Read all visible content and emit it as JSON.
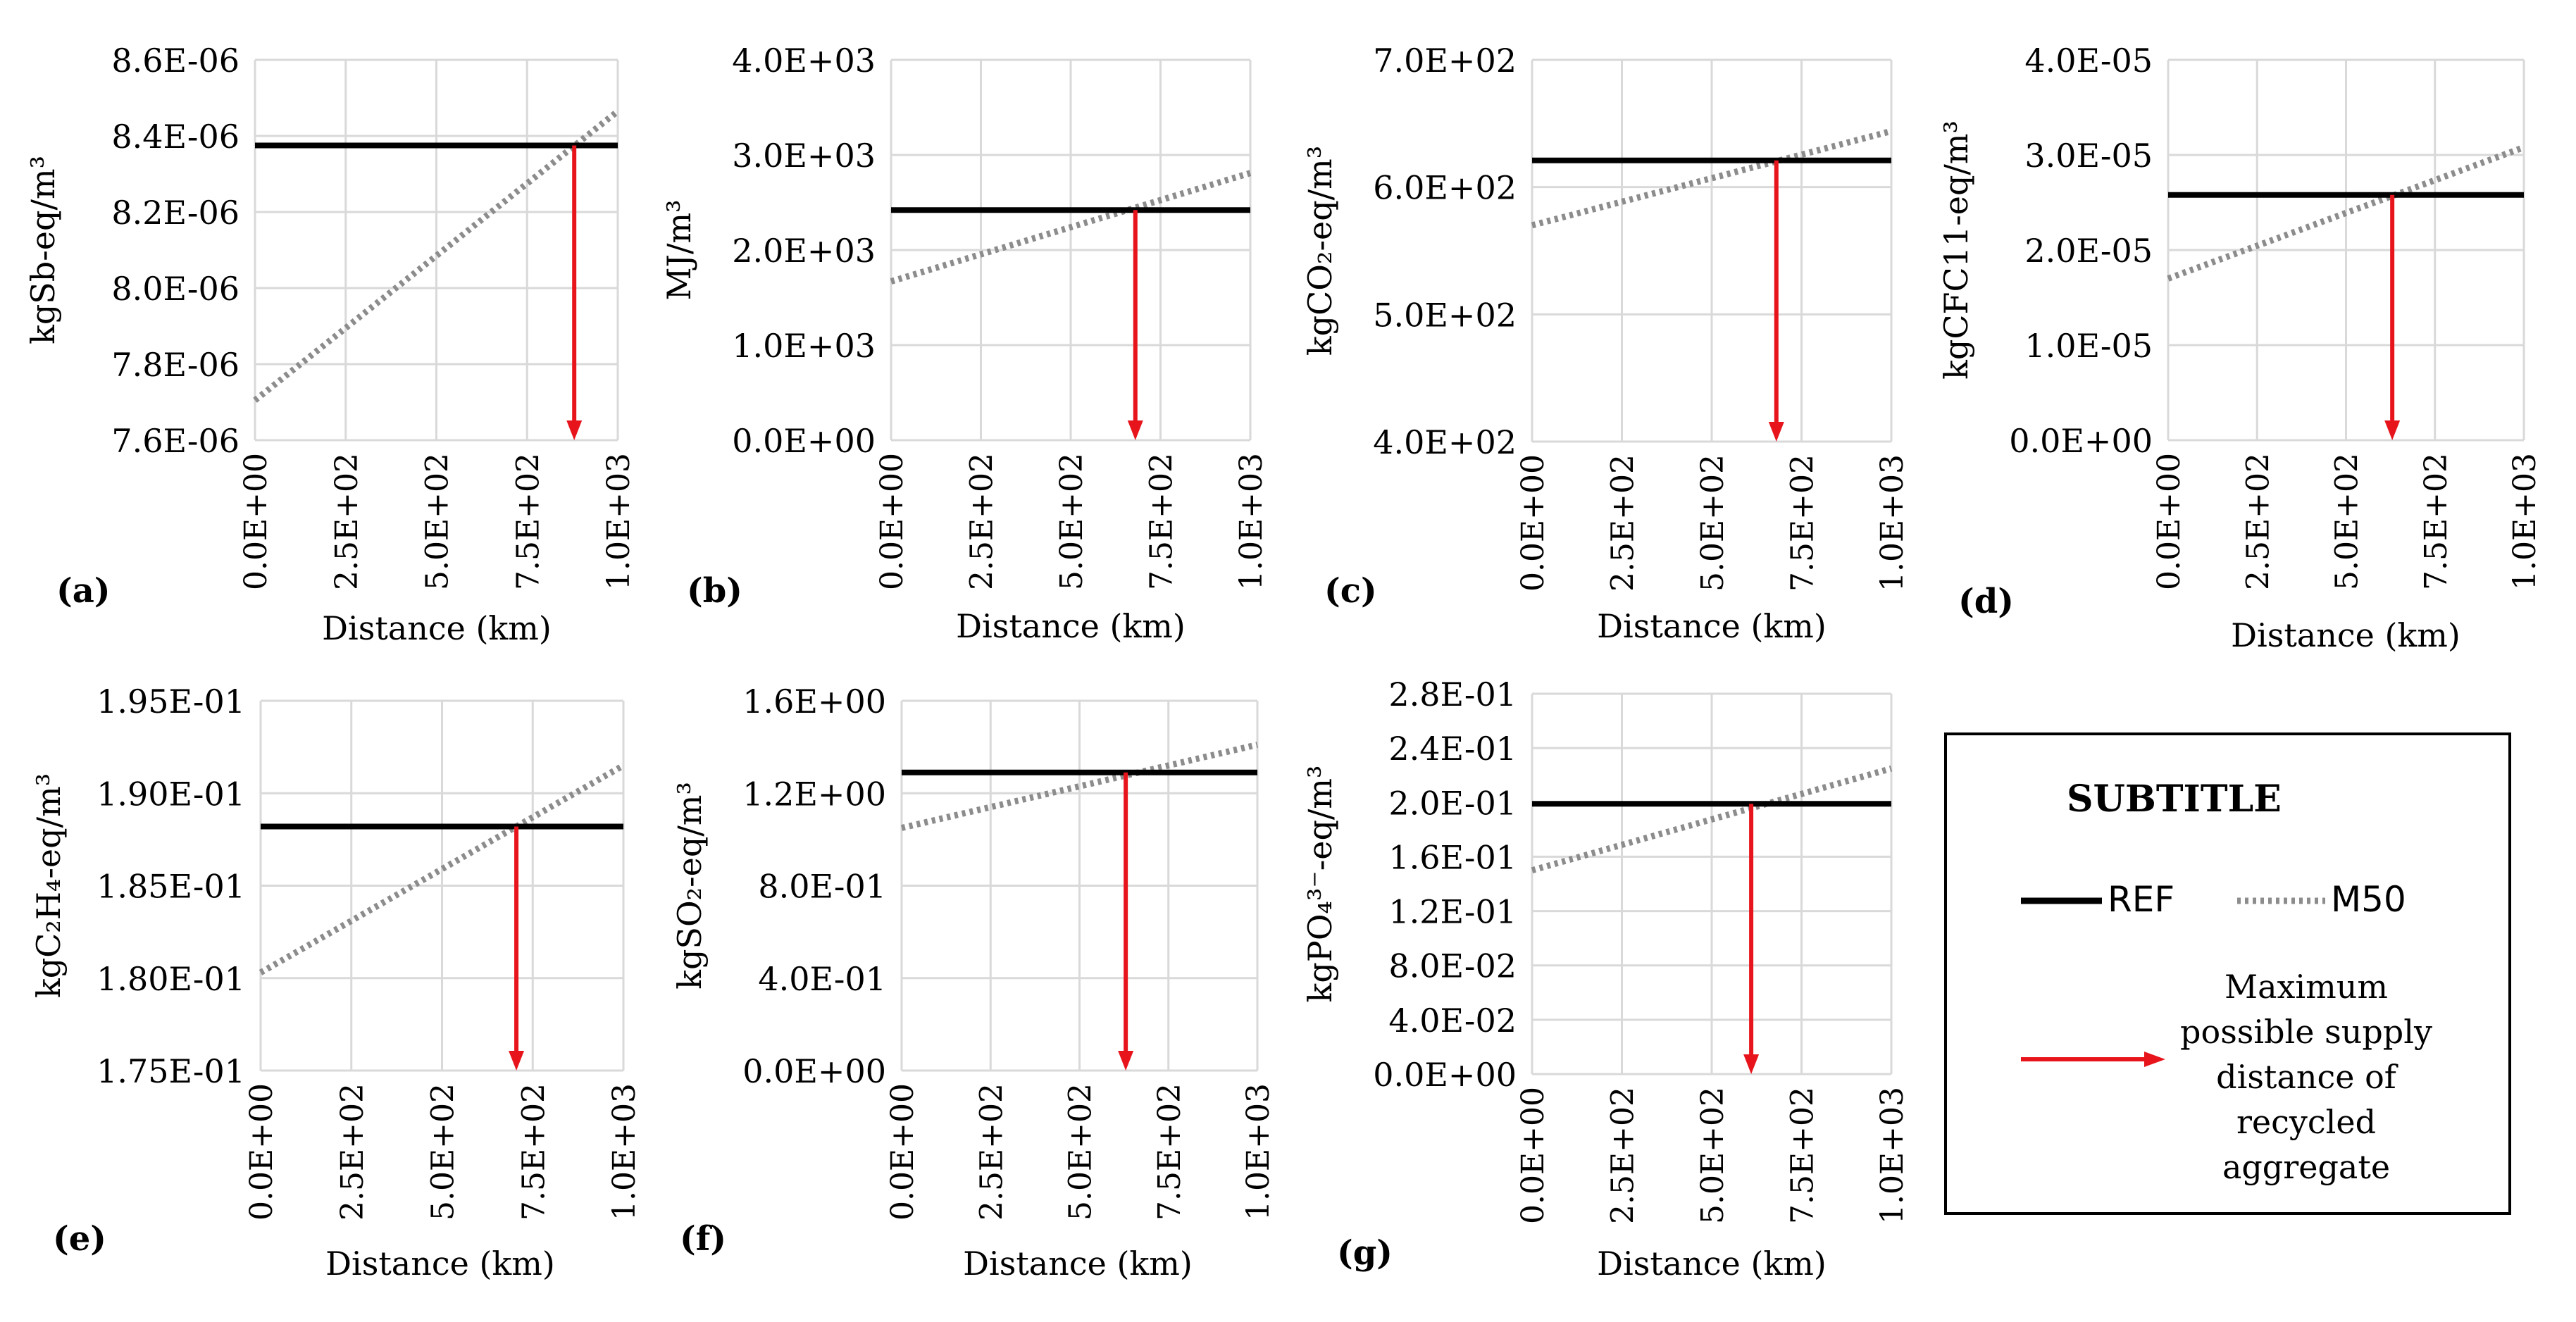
{
  "chart_data": [
    {
      "type": "line",
      "label": "(a)",
      "ylabel": "kgSb-eq/m³",
      "xlabel": "Distance (km)",
      "xlim": [
        0,
        1000
      ],
      "ylim": [
        7.6e-06,
        8.6e-06
      ],
      "yticks": [
        "7.6E-06",
        "7.8E-06",
        "8.0E-06",
        "8.2E-06",
        "8.4E-06",
        "8.6E-06"
      ],
      "xticks": [
        "0.0E+00",
        "2.5E+02",
        "5.0E+02",
        "7.5E+02",
        "1.0E+03"
      ],
      "series": [
        {
          "name": "REF",
          "x": [
            0,
            1000
          ],
          "values": [
            8.375e-06,
            8.375e-06
          ]
        },
        {
          "name": "M50",
          "x": [
            0,
            1000
          ],
          "values": [
            7.705e-06,
            8.465e-06
          ]
        }
      ],
      "max_distance": 880
    },
    {
      "type": "line",
      "label": "(b)",
      "ylabel": "MJ/m³",
      "xlabel": "Distance (km)",
      "xlim": [
        0,
        1000
      ],
      "ylim": [
        0,
        4000
      ],
      "yticks": [
        "0.0E+00",
        "1.0E+03",
        "2.0E+03",
        "3.0E+03",
        "4.0E+03"
      ],
      "xticks": [
        "0.0E+00",
        "2.5E+02",
        "5.0E+02",
        "7.5E+02",
        "1.0E+03"
      ],
      "series": [
        {
          "name": "REF",
          "x": [
            0,
            1000
          ],
          "values": [
            2420,
            2420
          ]
        },
        {
          "name": "M50",
          "x": [
            0,
            1000
          ],
          "values": [
            1670,
            2810
          ]
        }
      ],
      "max_distance": 680
    },
    {
      "type": "line",
      "label": "(c)",
      "ylabel": "kgCO₂-eq/m³",
      "xlabel": "Distance (km)",
      "xlim": [
        0,
        1000
      ],
      "ylim": [
        400,
        700
      ],
      "yticks": [
        "4.0E+02",
        "5.0E+02",
        "6.0E+02",
        "7.0E+02"
      ],
      "xticks": [
        "0.0E+00",
        "2.5E+02",
        "5.0E+02",
        "7.5E+02",
        "1.0E+03"
      ],
      "series": [
        {
          "name": "REF",
          "x": [
            0,
            1000
          ],
          "values": [
            621,
            621
          ]
        },
        {
          "name": "M50",
          "x": [
            0,
            1000
          ],
          "values": [
            570,
            644
          ]
        }
      ],
      "max_distance": 680
    },
    {
      "type": "line",
      "label": "(d)",
      "ylabel": "kgCFC11-eq/m³",
      "xlabel": "Distance (km)",
      "xlim": [
        0,
        1000
      ],
      "ylim": [
        0,
        4e-05
      ],
      "yticks": [
        "0.0E+00",
        "1.0E-05",
        "2.0E-05",
        "3.0E-05",
        "4.0E-05"
      ],
      "xticks": [
        "0.0E+00",
        "2.5E+02",
        "5.0E+02",
        "7.5E+02",
        "1.0E+03"
      ],
      "series": [
        {
          "name": "REF",
          "x": [
            0,
            1000
          ],
          "values": [
            2.58e-05,
            2.58e-05
          ]
        },
        {
          "name": "M50",
          "x": [
            0,
            1000
          ],
          "values": [
            1.7e-05,
            3.08e-05
          ]
        }
      ],
      "max_distance": 630
    },
    {
      "type": "line",
      "label": "(e)",
      "ylabel": "kgC₂H₄-eq/m³",
      "xlabel": "Distance (km)",
      "xlim": [
        0,
        1000
      ],
      "ylim": [
        0.175,
        0.195
      ],
      "yticks": [
        "1.75E-01",
        "1.80E-01",
        "1.85E-01",
        "1.90E-01",
        "1.95E-01"
      ],
      "xticks": [
        "0.0E+00",
        "2.5E+02",
        "5.0E+02",
        "7.5E+02",
        "1.0E+03"
      ],
      "series": [
        {
          "name": "REF",
          "x": [
            0,
            1000
          ],
          "values": [
            0.1882,
            0.1882
          ]
        },
        {
          "name": "M50",
          "x": [
            0,
            1000
          ],
          "values": [
            0.1803,
            0.1915
          ]
        }
      ],
      "max_distance": 705
    },
    {
      "type": "line",
      "label": "(f)",
      "ylabel": "kgSO₂-eq/m³",
      "xlabel": "Distance (km)",
      "xlim": [
        0,
        1000
      ],
      "ylim": [
        0,
        1.6
      ],
      "yticks": [
        "0.0E+00",
        "4.0E-01",
        "8.0E-01",
        "1.2E+00",
        "1.6E+00"
      ],
      "xticks": [
        "0.0E+00",
        "2.5E+02",
        "5.0E+02",
        "7.5E+02",
        "1.0E+03"
      ],
      "series": [
        {
          "name": "REF",
          "x": [
            0,
            1000
          ],
          "values": [
            1.29,
            1.29
          ]
        },
        {
          "name": "M50",
          "x": [
            0,
            1000
          ],
          "values": [
            1.05,
            1.41
          ]
        }
      ],
      "max_distance": 630
    },
    {
      "type": "line",
      "label": "(g)",
      "ylabel": "kgPO₄³⁻-eq/m³",
      "xlabel": "Distance (km)",
      "xlim": [
        0,
        1000
      ],
      "ylim": [
        0,
        0.28
      ],
      "yticks": [
        "0.0E+00",
        "4.0E-02",
        "8.0E-02",
        "1.2E-01",
        "1.6E-01",
        "2.0E-01",
        "2.4E-01",
        "2.8E-01"
      ],
      "xticks": [
        "0.0E+00",
        "2.5E+02",
        "5.0E+02",
        "7.5E+02",
        "1.0E+03"
      ],
      "series": [
        {
          "name": "REF",
          "x": [
            0,
            1000
          ],
          "values": [
            0.199,
            0.199
          ]
        },
        {
          "name": "M50",
          "x": [
            0,
            1000
          ],
          "values": [
            0.15,
            0.225
          ]
        }
      ],
      "max_distance": 610
    }
  ],
  "legend": {
    "title": "SUBTITLE",
    "ref_label": "REF",
    "m50_label": "M50",
    "arrow_label": "Maximum possible supply distance of recycled aggregate"
  },
  "colors": {
    "ref": "#000000",
    "m50": "#8c8c8c",
    "arrow": "#e8141c",
    "grid": "#d9d9d9"
  }
}
